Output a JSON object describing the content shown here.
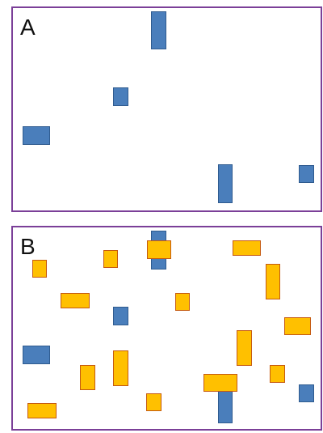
{
  "colors": {
    "frame": "#7b3f98",
    "blue_fill": "#4a7ebb",
    "blue_border": "#2f5b8f",
    "yellow_fill": "#ffc000",
    "yellow_border": "#c55a11"
  },
  "panels": {
    "a": {
      "label": "A"
    },
    "b": {
      "label": "B"
    }
  }
}
